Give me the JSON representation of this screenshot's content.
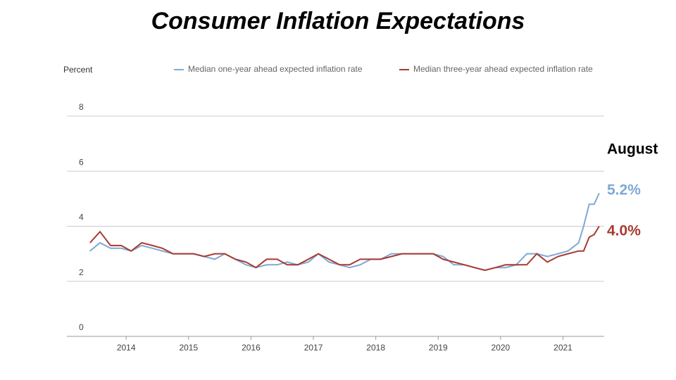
{
  "chart_data": {
    "type": "line",
    "title": "Consumer Inflation Expectations",
    "ylabel": "Percent",
    "x": [
      2013.42,
      2013.58,
      2013.75,
      2013.92,
      2014.08,
      2014.25,
      2014.42,
      2014.58,
      2014.75,
      2014.92,
      2015.08,
      2015.25,
      2015.42,
      2015.58,
      2015.75,
      2015.92,
      2016.08,
      2016.25,
      2016.42,
      2016.58,
      2016.75,
      2016.92,
      2017.08,
      2017.25,
      2017.42,
      2017.58,
      2017.75,
      2017.92,
      2018.08,
      2018.25,
      2018.42,
      2018.58,
      2018.75,
      2018.92,
      2019.08,
      2019.25,
      2019.42,
      2019.58,
      2019.75,
      2019.92,
      2020.08,
      2020.25,
      2020.42,
      2020.58,
      2020.75,
      2020.92,
      2021.08,
      2021.25,
      2021.33,
      2021.42,
      2021.5,
      2021.58
    ],
    "series": [
      {
        "name": "Median one-year ahead expected inflation rate",
        "color": "#7ea9d6",
        "values": [
          3.1,
          3.4,
          3.2,
          3.2,
          3.1,
          3.3,
          3.2,
          3.1,
          3.0,
          3.0,
          3.0,
          2.9,
          2.8,
          3.0,
          2.8,
          2.6,
          2.5,
          2.6,
          2.6,
          2.7,
          2.6,
          2.7,
          3.0,
          2.7,
          2.6,
          2.5,
          2.6,
          2.8,
          2.8,
          3.0,
          3.0,
          3.0,
          3.0,
          3.0,
          2.9,
          2.6,
          2.6,
          2.5,
          2.4,
          2.5,
          2.5,
          2.6,
          3.0,
          3.0,
          2.9,
          3.0,
          3.1,
          3.4,
          4.0,
          4.8,
          4.8,
          5.2
        ]
      },
      {
        "name": "Median three-year ahead expected inflation rate",
        "color": "#a83a32",
        "values": [
          3.4,
          3.8,
          3.3,
          3.3,
          3.1,
          3.4,
          3.3,
          3.2,
          3.0,
          3.0,
          3.0,
          2.9,
          3.0,
          3.0,
          2.8,
          2.7,
          2.5,
          2.8,
          2.8,
          2.6,
          2.6,
          2.8,
          3.0,
          2.8,
          2.6,
          2.6,
          2.8,
          2.8,
          2.8,
          2.9,
          3.0,
          3.0,
          3.0,
          3.0,
          2.8,
          2.7,
          2.6,
          2.5,
          2.4,
          2.5,
          2.6,
          2.6,
          2.6,
          3.0,
          2.7,
          2.9,
          3.0,
          3.1,
          3.1,
          3.6,
          3.7,
          4.0
        ]
      }
    ],
    "xlim": [
      2013.05,
      2021.66
    ],
    "xticks": [
      2014,
      2015,
      2016,
      2017,
      2018,
      2019,
      2020,
      2021
    ],
    "ylim": [
      0,
      8
    ],
    "yticks": [
      0,
      2,
      4,
      6,
      8
    ],
    "grid": true,
    "annotations": [
      "August",
      "5.2%",
      "4.0%"
    ]
  }
}
